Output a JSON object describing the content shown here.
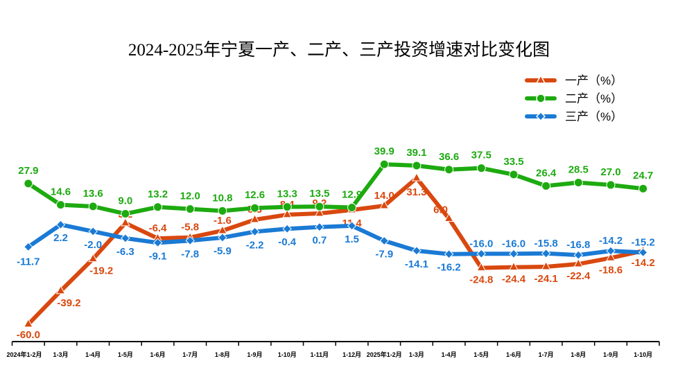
{
  "chart_data": {
    "type": "line",
    "title": "2024-2025年宁夏一产、二产、三产投资增速对比变化图",
    "xlabel": "",
    "ylabel": "",
    "ylim": [
      -68,
      45
    ],
    "grid": false,
    "legend_position": "top-right",
    "categories": [
      "2024年1-2月",
      "1-3月",
      "1-4月",
      "1-5月",
      "1-6月",
      "1-7月",
      "1-8月",
      "1-9月",
      "1-10月",
      "1-11月",
      "1-12月",
      "2025年1-2月",
      "1-3月",
      "1-4月",
      "1-5月",
      "1-6月",
      "1-7月",
      "1-8月",
      "1-9月",
      "1-10月"
    ],
    "series": [
      {
        "name": "一产（%）",
        "color": "#D9480F",
        "marker": "triangle",
        "values": [
          -60.0,
          -39.2,
          -19.2,
          3.2,
          -6.4,
          -5.8,
          -1.6,
          5.3,
          8.4,
          9.2,
          11.4,
          14.0,
          31.3,
          6.0,
          -24.8,
          -24.4,
          -24.1,
          -22.4,
          -18.6,
          -14.2
        ]
      },
      {
        "name": "二产（%）",
        "color": "#1DAA10",
        "marker": "circle",
        "values": [
          27.9,
          14.6,
          13.6,
          9.0,
          13.2,
          12.0,
          10.8,
          12.6,
          13.3,
          13.5,
          12.9,
          39.9,
          39.1,
          36.6,
          37.5,
          33.5,
          26.4,
          28.5,
          27.0,
          24.7
        ]
      },
      {
        "name": "三产（%）",
        "color": "#1A7AD4",
        "marker": "diamond",
        "values": [
          -11.7,
          2.2,
          -2.0,
          -6.3,
          -9.1,
          -7.8,
          -5.9,
          -2.2,
          -0.4,
          0.7,
          1.5,
          -7.9,
          -14.1,
          -16.2,
          -16.0,
          -16.0,
          -15.8,
          -16.8,
          -14.2,
          -15.2
        ]
      }
    ]
  }
}
